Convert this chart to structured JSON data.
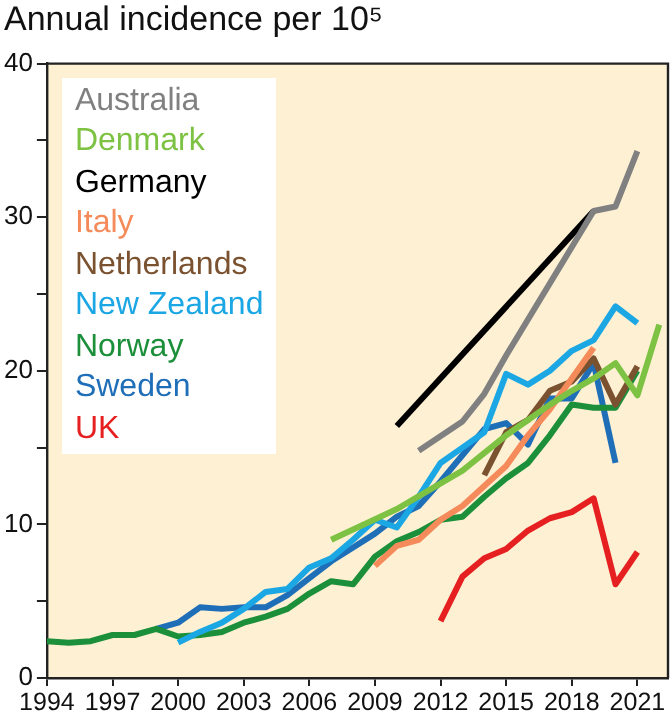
{
  "chart_data": {
    "type": "line",
    "title": "Annual incidence per 10⁵",
    "xlim": [
      1994,
      2022.4
    ],
    "xticks": [
      1994,
      1997,
      2000,
      2003,
      2006,
      2009,
      2012,
      2015,
      2018,
      2021
    ],
    "ylim": [
      0,
      40
    ],
    "yticks": [
      0,
      {
        "value": 5,
        "label": null
      },
      10,
      {
        "value": 15,
        "label": null
      },
      20,
      {
        "value": 25,
        "label": null
      },
      30,
      {
        "value": 35,
        "label": null
      },
      40
    ],
    "grid": false,
    "legend": "top left",
    "marker": "none",
    "line_style": "solid",
    "series": [
      {
        "name": "Australia",
        "color": "#808080",
        "x": [
          2011,
          2013,
          2014,
          2015,
          2019,
          2020,
          2021
        ],
        "values": [
          14.8,
          16.7,
          18.5,
          21,
          30.4,
          30.7,
          34.3
        ]
      },
      {
        "name": "Denmark",
        "color": "#7dc242",
        "x": [
          2007,
          2010,
          2013,
          2015,
          2016,
          2017,
          2018,
          2019,
          2020,
          2021,
          2022
        ],
        "values": [
          9.0,
          11.0,
          13.5,
          15.8,
          16.8,
          17.8,
          18.7,
          19.5,
          20.5,
          18.4,
          23
        ]
      },
      {
        "name": "Germany",
        "color": "#000000",
        "x": [
          2010,
          2019
        ],
        "values": [
          16.4,
          30.4
        ]
      },
      {
        "name": "Italy",
        "color": "#f58a5a",
        "x": [
          2009,
          2010,
          2011,
          2012,
          2013,
          2014,
          2015,
          2016,
          2017,
          2018,
          2019
        ],
        "values": [
          7.3,
          8.6,
          9.0,
          10.3,
          11.2,
          12.5,
          13.8,
          15.8,
          17.5,
          19.5,
          21.5
        ]
      },
      {
        "name": "Netherlands",
        "color": "#7b5230",
        "x": [
          2014,
          2015,
          2016,
          2017,
          2018,
          2019,
          2020,
          2021
        ],
        "values": [
          13.2,
          16.0,
          16.8,
          18.7,
          19.3,
          20.8,
          17.8,
          20.3
        ]
      },
      {
        "name": "New Zealand",
        "color": "#1ba6e4",
        "x": [
          2000,
          2001,
          2002,
          2003,
          2004,
          2005,
          2006,
          2007,
          2008,
          2009,
          2010,
          2011,
          2012,
          2013,
          2014,
          2015,
          2016,
          2017,
          2018,
          2019,
          2020,
          2021
        ],
        "values": [
          2.3,
          3.0,
          3.6,
          4.5,
          5.6,
          5.8,
          7.2,
          7.8,
          9.0,
          10.3,
          9.8,
          11.8,
          14.0,
          15.0,
          16.0,
          19.8,
          19.1,
          20.0,
          21.3,
          22.0,
          24.2,
          23.1
        ]
      },
      {
        "name": "Norway",
        "color": "#1b8f3a",
        "x": [
          1994,
          1995,
          1996,
          1997,
          1998,
          1999,
          2000,
          2001,
          2002,
          2003,
          2004,
          2005,
          2006,
          2007,
          2008,
          2009,
          2010,
          2011,
          2012,
          2013,
          2014,
          2015,
          2016,
          2017,
          2018,
          2019,
          2020,
          2021
        ],
        "values": [
          2.4,
          2.3,
          2.4,
          2.8,
          2.8,
          3.2,
          2.7,
          2.8,
          3.0,
          3.6,
          4.0,
          4.5,
          5.5,
          6.3,
          6.1,
          7.9,
          8.9,
          9.5,
          10.3,
          10.5,
          11.8,
          13.0,
          14.0,
          15.8,
          17.8,
          17.6,
          17.6,
          20.0
        ]
      },
      {
        "name": "Sweden",
        "color": "#1f6fb8",
        "x": [
          1999,
          2000,
          2001,
          2002,
          2003,
          2004,
          2005,
          2006,
          2007,
          2008,
          2009,
          2010,
          2011,
          2012,
          2013,
          2014,
          2015,
          2016,
          2017,
          2018,
          2019,
          2020
        ],
        "values": [
          3.2,
          3.6,
          4.6,
          4.5,
          4.6,
          4.6,
          5.4,
          6.5,
          7.6,
          8.5,
          9.4,
          10.5,
          11.2,
          12.8,
          14.5,
          16.2,
          16.6,
          15.2,
          18.2,
          18.2,
          20.5,
          14.0
        ]
      },
      {
        "name": "UK",
        "color": "#e62020",
        "x": [
          2012,
          2013,
          2014,
          2015,
          2016,
          2017,
          2018,
          2019,
          2020,
          2021
        ],
        "values": [
          3.7,
          6.6,
          7.8,
          8.4,
          9.6,
          10.4,
          10.8,
          11.7,
          6.1,
          8.2
        ]
      }
    ]
  }
}
